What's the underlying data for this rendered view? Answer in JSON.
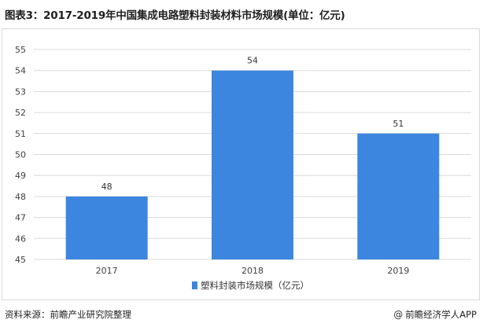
{
  "title": "图表3：2017-2019年中国集成电路塑料封装材料市场规模(单位：亿元)",
  "source": "资料来源：前瞻产业研究院整理",
  "brand": {
    "icon": "at-icon",
    "text": "前瞻经济学人APP"
  },
  "colors": {
    "bar": "#3c86e0",
    "gridline": "#d9d9d9",
    "axis_text": "#404040"
  },
  "chart_data": {
    "type": "bar",
    "categories": [
      "2017",
      "2018",
      "2019"
    ],
    "series": [
      {
        "name": "塑料封装市场规模（亿元）",
        "values": [
          48,
          54,
          51
        ]
      }
    ],
    "value_labels": [
      "48",
      "54",
      "51"
    ],
    "ylim": [
      45,
      55
    ],
    "yticks": [
      45,
      46,
      47,
      48,
      49,
      50,
      51,
      52,
      53,
      54,
      55
    ],
    "grid": true,
    "legend_position": "bottom"
  }
}
